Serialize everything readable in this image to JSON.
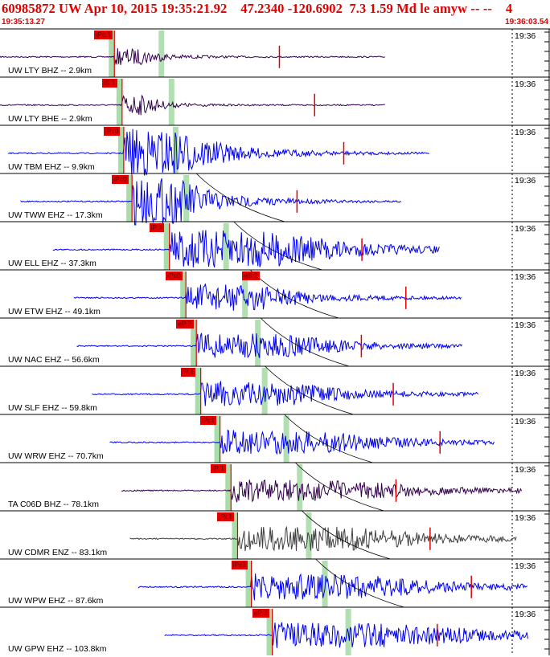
{
  "header": {
    "title": "60985872 UW Apr 10, 2015 19:35:21.92    47.2340 -120.6902  7.3 1.59 Md le amyw -- --    4",
    "start_time": "19:35:13.27",
    "end_time": "19:36:03.54"
  },
  "colors": {
    "accent": "#e00000",
    "trace_blue": "#0000ee",
    "trace_purple": "#33004d",
    "trace_gray": "#404040",
    "window_green": "#a8dca8"
  },
  "traces": [
    {
      "station": "UW LTY BHZ -- 2.9km",
      "time_mark": "19:36",
      "pick": "iPc 1",
      "pick2": "",
      "color": "#33004d",
      "amp": 0.35,
      "dur": 0.1,
      "onset": 0.208,
      "start": 0.0,
      "end": 0.7
    },
    {
      "station": "UW LTY BHE -- 2.9km",
      "time_mark": "19:36",
      "pick": "iS 1",
      "pick2": "",
      "color": "#33004d",
      "amp": 0.45,
      "dur": 0.08,
      "onset": 0.222,
      "start": 0.0,
      "end": 0.7
    },
    {
      "station": "UW TBM EHZ -- 9.9km",
      "time_mark": "19:36",
      "pick": "iPc0",
      "pick2": "",
      "color": "#0000ee",
      "amp": 1.05,
      "dur": 0.2,
      "onset": 0.225,
      "start": 0.015,
      "end": 0.78
    },
    {
      "station": "UW TWW EHZ -- 17.3km",
      "time_mark": "19:36",
      "pick": "iPc0",
      "pick2": "",
      "color": "#0000ee",
      "amp": 1.05,
      "dur": 0.17,
      "onset": 0.24,
      "start": 0.038,
      "end": 0.73
    },
    {
      "station": "UW ELL EHZ -- 37.3km",
      "time_mark": "19:36",
      "pick": "iP 1",
      "pick2": "",
      "color": "#0000ee",
      "amp": 0.85,
      "dur": 0.36,
      "onset": 0.308,
      "start": 0.097,
      "end": 0.8
    },
    {
      "station": "UW ETW EHZ -- 49.1km",
      "time_mark": "19:36",
      "pick": "iPc0",
      "pick2": "eS 2",
      "color": "#0000ee",
      "amp": 0.6,
      "dur": 0.24,
      "onset": 0.338,
      "start": 0.135,
      "end": 0.84
    },
    {
      "station": "UW NAC EHZ -- 56.6km",
      "time_mark": "19:36",
      "pick": "eP 2",
      "pick2": "",
      "color": "#0000ee",
      "amp": 0.55,
      "dur": 0.3,
      "onset": 0.357,
      "start": 0.14,
      "end": 0.84
    },
    {
      "station": "UW SLF EHZ -- 59.8km",
      "time_mark": "19:36",
      "pick": "iP 1",
      "pick2": "",
      "color": "#0000ee",
      "amp": 0.55,
      "dur": 0.3,
      "onset": 0.365,
      "start": 0.168,
      "end": 0.87
    },
    {
      "station": "UW WRW EHZ -- 70.7km",
      "time_mark": "19:36",
      "pick": "iPc1",
      "pick2": "",
      "color": "#0000ee",
      "amp": 0.5,
      "dur": 0.36,
      "onset": 0.4,
      "start": 0.2,
      "end": 0.9
    },
    {
      "station": "TA C06D BHZ -- 78.1km",
      "time_mark": "19:36",
      "pick": "iP 1",
      "pick2": "",
      "color": "#33004d",
      "amp": 0.45,
      "dur": 0.4,
      "onset": 0.42,
      "start": 0.222,
      "end": 0.95
    },
    {
      "station": "UW CDMR ENZ -- 83.1km",
      "time_mark": "19:36",
      "pick": "iPc1",
      "pick2": "",
      "color": "#404040",
      "amp": 0.55,
      "dur": 0.4,
      "onset": 0.432,
      "start": 0.237,
      "end": 0.94
    },
    {
      "station": "UW WPW EHZ -- 87.6km",
      "time_mark": "19:36",
      "pick": "iPc1",
      "pick2": "",
      "color": "#0000ee",
      "amp": 0.55,
      "dur": 0.4,
      "onset": 0.457,
      "start": 0.252,
      "end": 0.96
    },
    {
      "station": "UW GPW EHZ -- 103.8km",
      "time_mark": "19:36",
      "pick": "eP 2",
      "pick2": "",
      "color": "#0000ee",
      "amp": 0.55,
      "dur": 0.45,
      "onset": 0.495,
      "start": 0.3,
      "end": 0.96
    }
  ]
}
